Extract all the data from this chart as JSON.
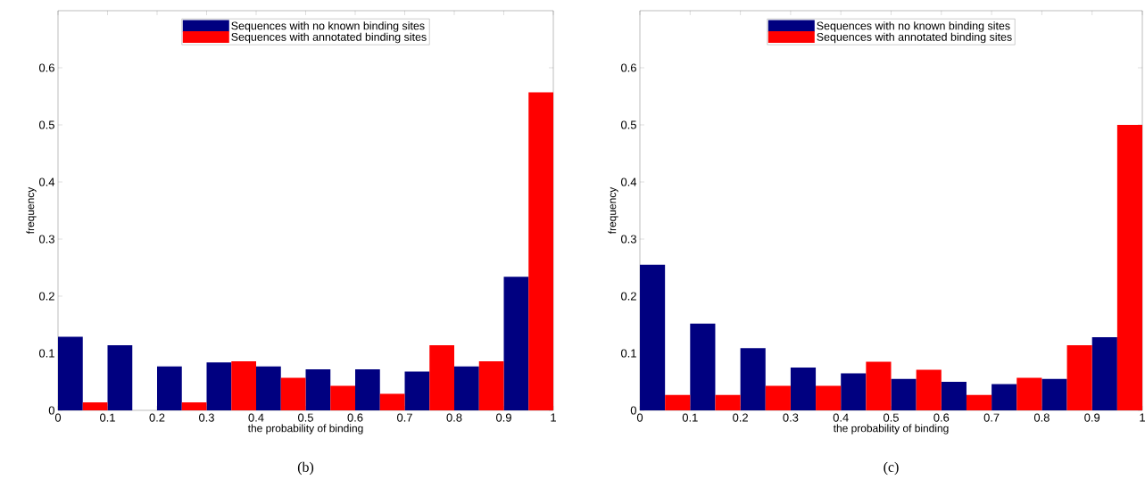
{
  "chart_data": [
    {
      "type": "bar",
      "xlabel": "the probability of binding",
      "ylabel": "frequency",
      "xlim": [
        0,
        1
      ],
      "ylim": [
        0,
        0.7
      ],
      "xticks": [
        0,
        0.1,
        0.2,
        0.3,
        0.4,
        0.5,
        0.6,
        0.7,
        0.8,
        0.9,
        1
      ],
      "yticks": [
        0,
        0.1,
        0.2,
        0.3,
        0.4,
        0.5,
        0.6
      ],
      "legend": "top",
      "annotations": [
        "(b)"
      ],
      "series": [
        {
          "name": "Sequences with no known binding sites",
          "color": "#000080",
          "x": [
            0.025,
            0.125,
            0.225,
            0.325,
            0.425,
            0.525,
            0.625,
            0.725,
            0.825,
            0.925
          ],
          "values": [
            0.129,
            0.114,
            0.077,
            0.084,
            0.077,
            0.072,
            0.072,
            0.068,
            0.077,
            0.234
          ]
        },
        {
          "name": "Sequences with annotated binding sites",
          "color": "#ff0000",
          "x": [
            0.075,
            0.175,
            0.275,
            0.375,
            0.475,
            0.575,
            0.675,
            0.775,
            0.875,
            0.975
          ],
          "values": [
            0.014,
            0,
            0.014,
            0.086,
            0.057,
            0.043,
            0.029,
            0.114,
            0.086,
            0.557
          ]
        }
      ]
    },
    {
      "type": "bar",
      "xlabel": "the probability of binding",
      "ylabel": "frequency",
      "xlim": [
        0,
        1
      ],
      "ylim": [
        0,
        0.7
      ],
      "xticks": [
        0,
        0.1,
        0.2,
        0.3,
        0.4,
        0.5,
        0.6,
        0.7,
        0.8,
        0.9,
        1
      ],
      "yticks": [
        0,
        0.1,
        0.2,
        0.3,
        0.4,
        0.5,
        0.6
      ],
      "legend": "top",
      "annotations": [
        "(c)"
      ],
      "series": [
        {
          "name": "Sequences with no known binding sites",
          "color": "#000080",
          "x": [
            0.025,
            0.125,
            0.225,
            0.325,
            0.425,
            0.525,
            0.625,
            0.725,
            0.825,
            0.925
          ],
          "values": [
            0.255,
            0.152,
            0.109,
            0.075,
            0.065,
            0.055,
            0.05,
            0.046,
            0.055,
            0.128
          ]
        },
        {
          "name": "Sequences with annotated binding sites",
          "color": "#ff0000",
          "x": [
            0.075,
            0.175,
            0.275,
            0.375,
            0.475,
            0.575,
            0.675,
            0.775,
            0.875,
            0.975
          ],
          "values": [
            0.027,
            0.027,
            0.043,
            0.043,
            0.085,
            0.071,
            0.027,
            0.057,
            0.114,
            0.5
          ]
        }
      ]
    }
  ]
}
